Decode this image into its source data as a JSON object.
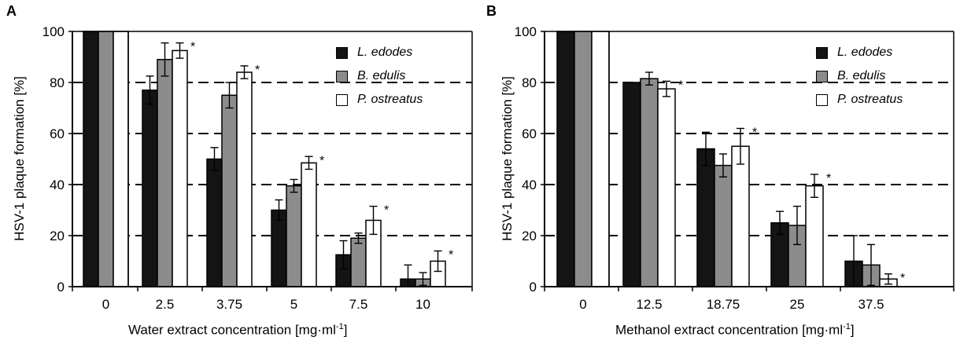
{
  "colors": {
    "l_edodes": "#141414",
    "b_edulis": "#8c8c8c",
    "p_ostreatus": "#ffffff"
  },
  "chart_data": [
    {
      "panel": "A",
      "type": "bar",
      "ylabel": "HSV-1 plaque formation [%]",
      "xlabel_text": "Water extract concentration [mg·ml",
      "xlabel_sup": "-1",
      "xlabel_close": "]",
      "ylim": [
        0,
        100
      ],
      "yticks": [
        0,
        20,
        40,
        60,
        80,
        100
      ],
      "grid": "dashed horizontal at 20, 40, 60, 80",
      "legend_position": "top-right",
      "categories": [
        "0",
        "2.5",
        "3.75",
        "5",
        "7.5",
        "10"
      ],
      "series": [
        {
          "name": "L. edodes",
          "values": [
            100,
            77,
            50,
            30,
            12.5,
            3
          ],
          "errors": [
            0,
            5.5,
            4.5,
            4,
            5.5,
            5.5
          ]
        },
        {
          "name": "B. edulis",
          "values": [
            100,
            89,
            75,
            39.5,
            19,
            3
          ],
          "errors": [
            0,
            6.5,
            5,
            2.5,
            2,
            2.5
          ]
        },
        {
          "name": "P. ostreatus",
          "values": [
            100,
            92.5,
            84,
            48.5,
            26,
            10
          ],
          "errors": [
            0,
            3,
            2.5,
            2.5,
            5.5,
            4
          ]
        }
      ],
      "significance_mark": "*",
      "significant": [
        false,
        true,
        true,
        true,
        true,
        true
      ]
    },
    {
      "panel": "B",
      "type": "bar",
      "ylabel": "HSV-1 plaque formation [%]",
      "xlabel_text": "Methanol extract concentration [mg·ml",
      "xlabel_sup": "-1",
      "xlabel_close": "]",
      "ylim": [
        0,
        100
      ],
      "yticks": [
        0,
        20,
        40,
        60,
        80,
        100
      ],
      "grid": "dashed horizontal at 20, 40, 60, 80",
      "legend_position": "top-right",
      "categories": [
        "0",
        "12.5",
        "18.75",
        "25",
        "37.5"
      ],
      "series": [
        {
          "name": "L. edodes",
          "values": [
            100,
            80,
            54,
            25,
            10
          ],
          "errors": [
            0,
            0,
            6.5,
            4.5,
            10
          ]
        },
        {
          "name": "B. edulis",
          "values": [
            100,
            81.5,
            47.5,
            24,
            8.5
          ],
          "errors": [
            0,
            2.5,
            4.5,
            7.5,
            8
          ]
        },
        {
          "name": "P. ostreatus",
          "values": [
            100,
            77.5,
            55,
            39.5,
            3
          ],
          "errors": [
            0,
            3,
            7,
            4.5,
            2
          ]
        }
      ],
      "significance_mark": "*",
      "significant": [
        false,
        true,
        true,
        true,
        true
      ]
    }
  ]
}
